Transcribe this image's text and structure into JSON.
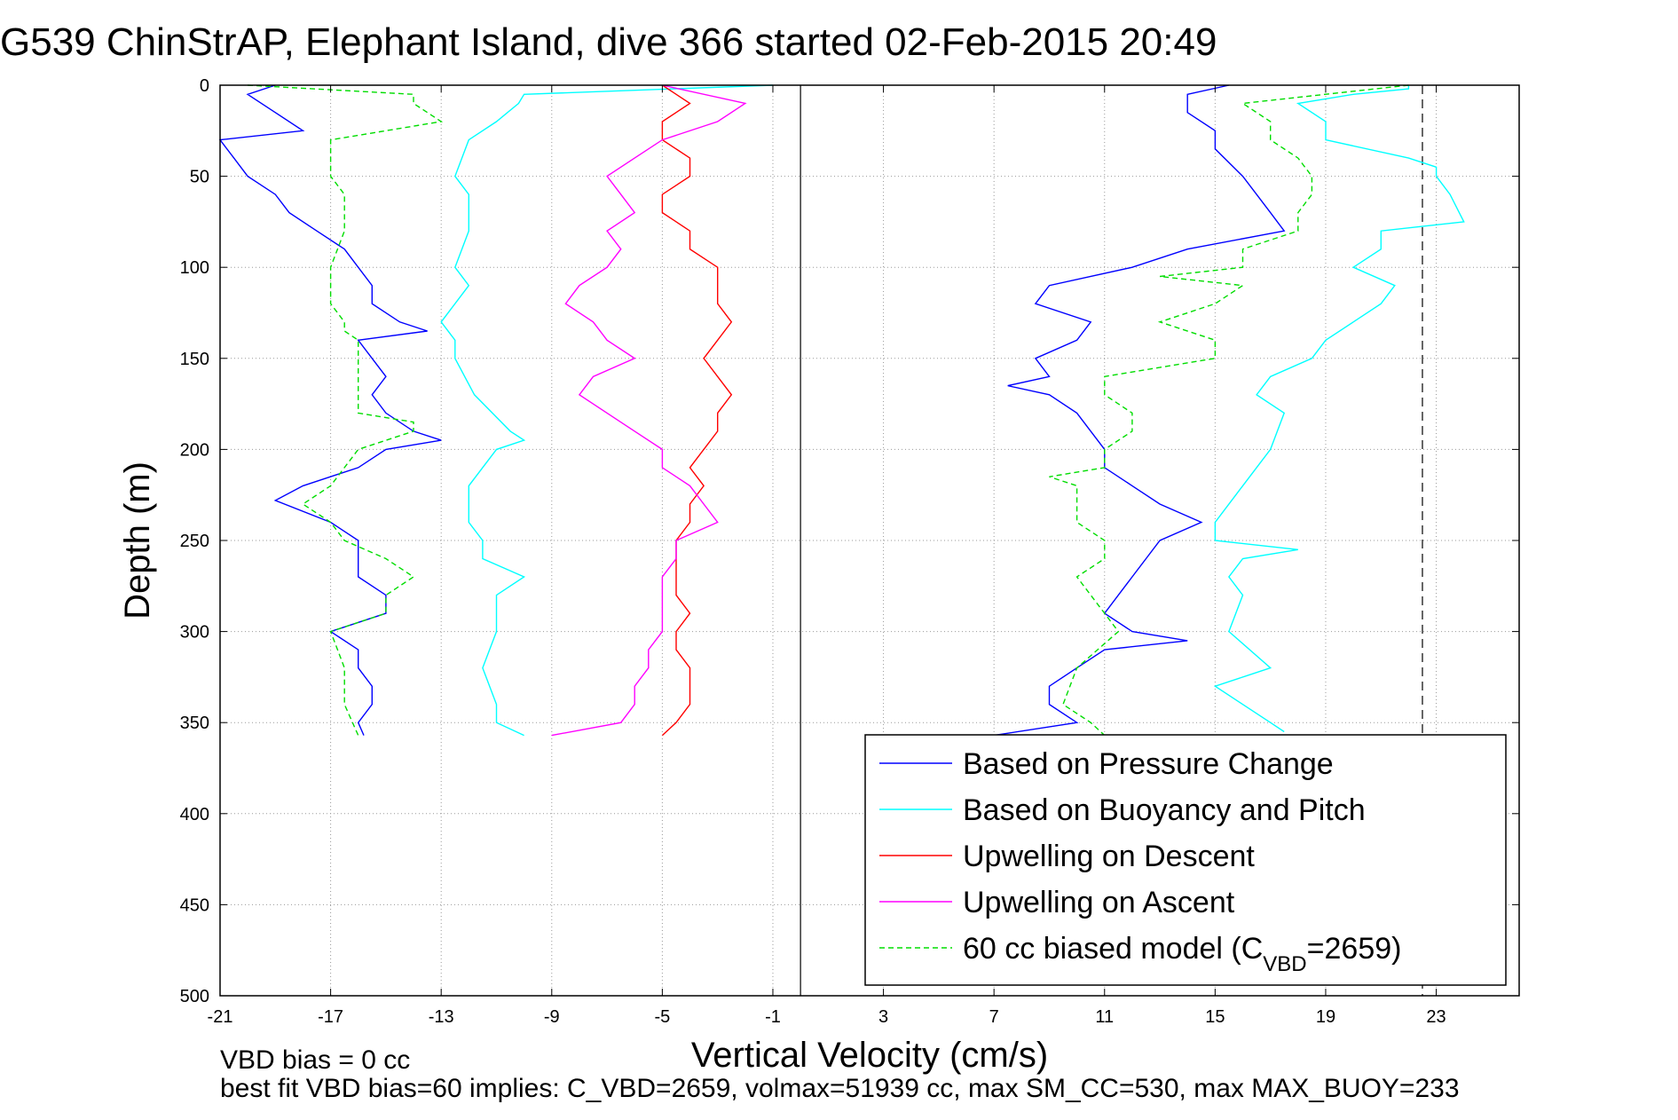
{
  "chart_data": {
    "type": "line",
    "title": "G539 ChinStrAP, Elephant Island, dive 366 started 02-Feb-2015 20:49",
    "xlabel": "Vertical Velocity (cm/s)",
    "ylabel": "Depth (m)",
    "xlim": [
      -21,
      26
    ],
    "ylim": [
      500,
      0
    ],
    "x_ticks": [
      "-21",
      "-17",
      "-13",
      "-9",
      "-5",
      "-1",
      "3",
      "7",
      "11",
      "15",
      "19",
      "23"
    ],
    "y_ticks": [
      "0",
      "50",
      "100",
      "150",
      "200",
      "250",
      "300",
      "350",
      "400",
      "450",
      "500"
    ],
    "grid": true,
    "legend_position": "bottom-right",
    "reference_lines": {
      "solid_x": 0,
      "dashed_x": 22.5
    },
    "colors": {
      "pressure": "#0000ff",
      "buoyancy": "#00ffff",
      "descent": "#ff0000",
      "ascent": "#ff00ff",
      "model": "#00dd00"
    },
    "series": [
      {
        "name": "Based on Pressure Change",
        "style": "solid",
        "depth": [
          0,
          5,
          15,
          25,
          30,
          40,
          50,
          60,
          70,
          80,
          90,
          100,
          110,
          120,
          130,
          135,
          140,
          150,
          160,
          170,
          180,
          190,
          195,
          200,
          210,
          220,
          228,
          240,
          250,
          260,
          270,
          280,
          290,
          300,
          310,
          320,
          330,
          340,
          350,
          357
        ],
        "values": [
          -19,
          -20,
          -19,
          -18,
          -21,
          -20.5,
          -20,
          -19,
          -18.5,
          -17.5,
          -16.5,
          -16,
          -15.5,
          -15.5,
          -14.5,
          -13.5,
          -16,
          -15.5,
          -15,
          -15.5,
          -15,
          -14,
          -13,
          -15,
          -16,
          -18,
          -19,
          -17,
          -16,
          -16,
          -16,
          -15,
          -15,
          -17,
          -16,
          -16,
          -15.5,
          -15.5,
          -16,
          -15.8
        ]
      },
      {
        "name": "Based on Pressure Change",
        "style": "solid",
        "depth": [
          0,
          5,
          15,
          25,
          35,
          50,
          60,
          70,
          80,
          90,
          100,
          110,
          120,
          130,
          140,
          150,
          160,
          165,
          170,
          180,
          190,
          200,
          210,
          220,
          230,
          240,
          250,
          260,
          270,
          280,
          290,
          300,
          305,
          310,
          320,
          330,
          340,
          350,
          357
        ],
        "values": [
          15.5,
          14,
          14,
          15,
          15,
          16,
          16.5,
          17,
          17.5,
          14,
          12,
          9,
          8.5,
          10.5,
          10,
          8.5,
          9,
          7.5,
          9,
          10,
          10.5,
          11,
          11,
          12,
          13,
          14.5,
          13,
          12.5,
          12,
          11.5,
          11,
          12,
          14,
          11,
          10,
          9,
          9,
          10,
          7
        ]
      },
      {
        "name": "Based on Buoyancy and Pitch",
        "style": "solid",
        "depth": [
          0,
          5,
          10,
          20,
          30,
          50,
          60,
          80,
          100,
          110,
          130,
          140,
          150,
          170,
          190,
          195,
          200,
          220,
          240,
          250,
          260,
          270,
          280,
          300,
          320,
          340,
          350,
          357
        ],
        "values": [
          -1,
          -10,
          -10.2,
          -11,
          -12,
          -12.5,
          -12,
          -12,
          -12.5,
          -12,
          -13,
          -12.5,
          -12.5,
          -11.8,
          -10.5,
          -10,
          -11,
          -12,
          -12,
          -11.5,
          -11.5,
          -10,
          -11,
          -11,
          -11.5,
          -11,
          -11,
          -10
        ]
      },
      {
        "name": "Based on Buoyancy and Pitch",
        "style": "solid",
        "depth": [
          0,
          2,
          5,
          10,
          20,
          30,
          40,
          45,
          50,
          60,
          75,
          80,
          90,
          100,
          110,
          120,
          130,
          140,
          150,
          160,
          170,
          180,
          200,
          220,
          240,
          250,
          255,
          260,
          270,
          280,
          300,
          320,
          330,
          340,
          350,
          355
        ],
        "values": [
          22,
          22,
          20,
          18,
          19,
          19,
          22,
          23,
          23,
          23.5,
          24,
          21,
          21,
          20,
          21.5,
          21,
          20,
          19,
          18.5,
          17,
          16.5,
          17.5,
          17,
          16,
          15,
          15,
          18,
          16,
          15.5,
          16,
          15.5,
          17,
          15,
          16,
          17,
          17.5
        ]
      },
      {
        "name": "Upwelling on Descent",
        "style": "solid",
        "depth": [
          0,
          10,
          20,
          30,
          40,
          50,
          60,
          70,
          80,
          90,
          100,
          110,
          120,
          130,
          140,
          150,
          160,
          170,
          180,
          190,
          200,
          210,
          220,
          230,
          240,
          250,
          260,
          270,
          280,
          290,
          300,
          310,
          320,
          330,
          340,
          350,
          357
        ],
        "values": [
          -5,
          -4,
          -5,
          -5,
          -4,
          -4,
          -5,
          -5,
          -4,
          -4,
          -3,
          -3,
          -3,
          -2.5,
          -3,
          -3.5,
          -3,
          -2.5,
          -3,
          -3,
          -3.5,
          -4,
          -3.5,
          -4,
          -4,
          -4.5,
          -4.5,
          -4.5,
          -4.5,
          -4,
          -4.5,
          -4.5,
          -4,
          -4,
          -4,
          -4.5,
          -5
        ]
      },
      {
        "name": "Upwelling on Ascent",
        "style": "solid",
        "depth": [
          0,
          10,
          20,
          30,
          40,
          50,
          60,
          70,
          80,
          90,
          100,
          110,
          120,
          130,
          140,
          150,
          160,
          170,
          180,
          190,
          200,
          210,
          220,
          230,
          240,
          250,
          260,
          270,
          280,
          290,
          300,
          310,
          320,
          330,
          340,
          350,
          357
        ],
        "values": [
          -5,
          -2,
          -3,
          -5,
          -6,
          -7,
          -6.5,
          -6,
          -7,
          -6.5,
          -7,
          -8,
          -8.5,
          -7.5,
          -7,
          -6,
          -7.5,
          -8,
          -7,
          -6,
          -5,
          -5,
          -4,
          -3.5,
          -3,
          -4.5,
          -4.5,
          -5,
          -5,
          -5,
          -5,
          -5.5,
          -5.5,
          -6,
          -6,
          -6.5,
          -9
        ]
      },
      {
        "name": "60 cc biased model (C_VBD=2659)",
        "style": "dashed",
        "depth": [
          0,
          5,
          10,
          20,
          30,
          40,
          50,
          60,
          80,
          100,
          110,
          120,
          130,
          135,
          140,
          160,
          180,
          185,
          190,
          200,
          220,
          230,
          240,
          250,
          260,
          270,
          280,
          290,
          300,
          320,
          340,
          357
        ],
        "values": [
          -20,
          -14,
          -14,
          -13,
          -17,
          -17,
          -17,
          -16.5,
          -16.5,
          -17,
          -17,
          -17,
          -16.5,
          -16.5,
          -16,
          -16,
          -16,
          -14,
          -14,
          -16,
          -17,
          -18,
          -17,
          -16.5,
          -15,
          -14,
          -15,
          -15,
          -17,
          -16.5,
          -16.5,
          -16
        ]
      },
      {
        "name": "60 cc biased model (C_VBD=2659)",
        "style": "dashed",
        "depth": [
          0,
          10,
          20,
          30,
          40,
          50,
          60,
          70,
          80,
          90,
          100,
          105,
          110,
          120,
          130,
          140,
          150,
          160,
          170,
          180,
          190,
          200,
          210,
          215,
          220,
          240,
          250,
          260,
          270,
          280,
          290,
          300,
          320,
          340,
          350,
          357
        ],
        "values": [
          22,
          16,
          17,
          17,
          18,
          18.5,
          18.5,
          18,
          18,
          16,
          16,
          13,
          16,
          15,
          13,
          15,
          15,
          11,
          11,
          12,
          12,
          11,
          11,
          9,
          10,
          10,
          11,
          11,
          10,
          10.5,
          11,
          11.5,
          10,
          9.5,
          10.5,
          11
        ]
      }
    ],
    "legend": [
      {
        "label": "Based on Pressure Change",
        "color": "#0000ff",
        "style": "solid"
      },
      {
        "label": "Based on Buoyancy and Pitch",
        "color": "#00ffff",
        "style": "solid"
      },
      {
        "label": "Upwelling on Descent",
        "color": "#ff0000",
        "style": "solid"
      },
      {
        "label": "Upwelling on Ascent",
        "color": "#ff00ff",
        "style": "solid"
      },
      {
        "label": "60 cc biased model (C",
        "sub": "VBD",
        "suffix": "=2659)",
        "color": "#00dd00",
        "style": "dashed"
      }
    ],
    "footnotes": [
      "VBD bias = 0 cc",
      "best fit VBD bias=60 implies: C_VBD=2659, volmax=51939 cc, max SM_CC=530, max MAX_BUOY=233"
    ]
  }
}
